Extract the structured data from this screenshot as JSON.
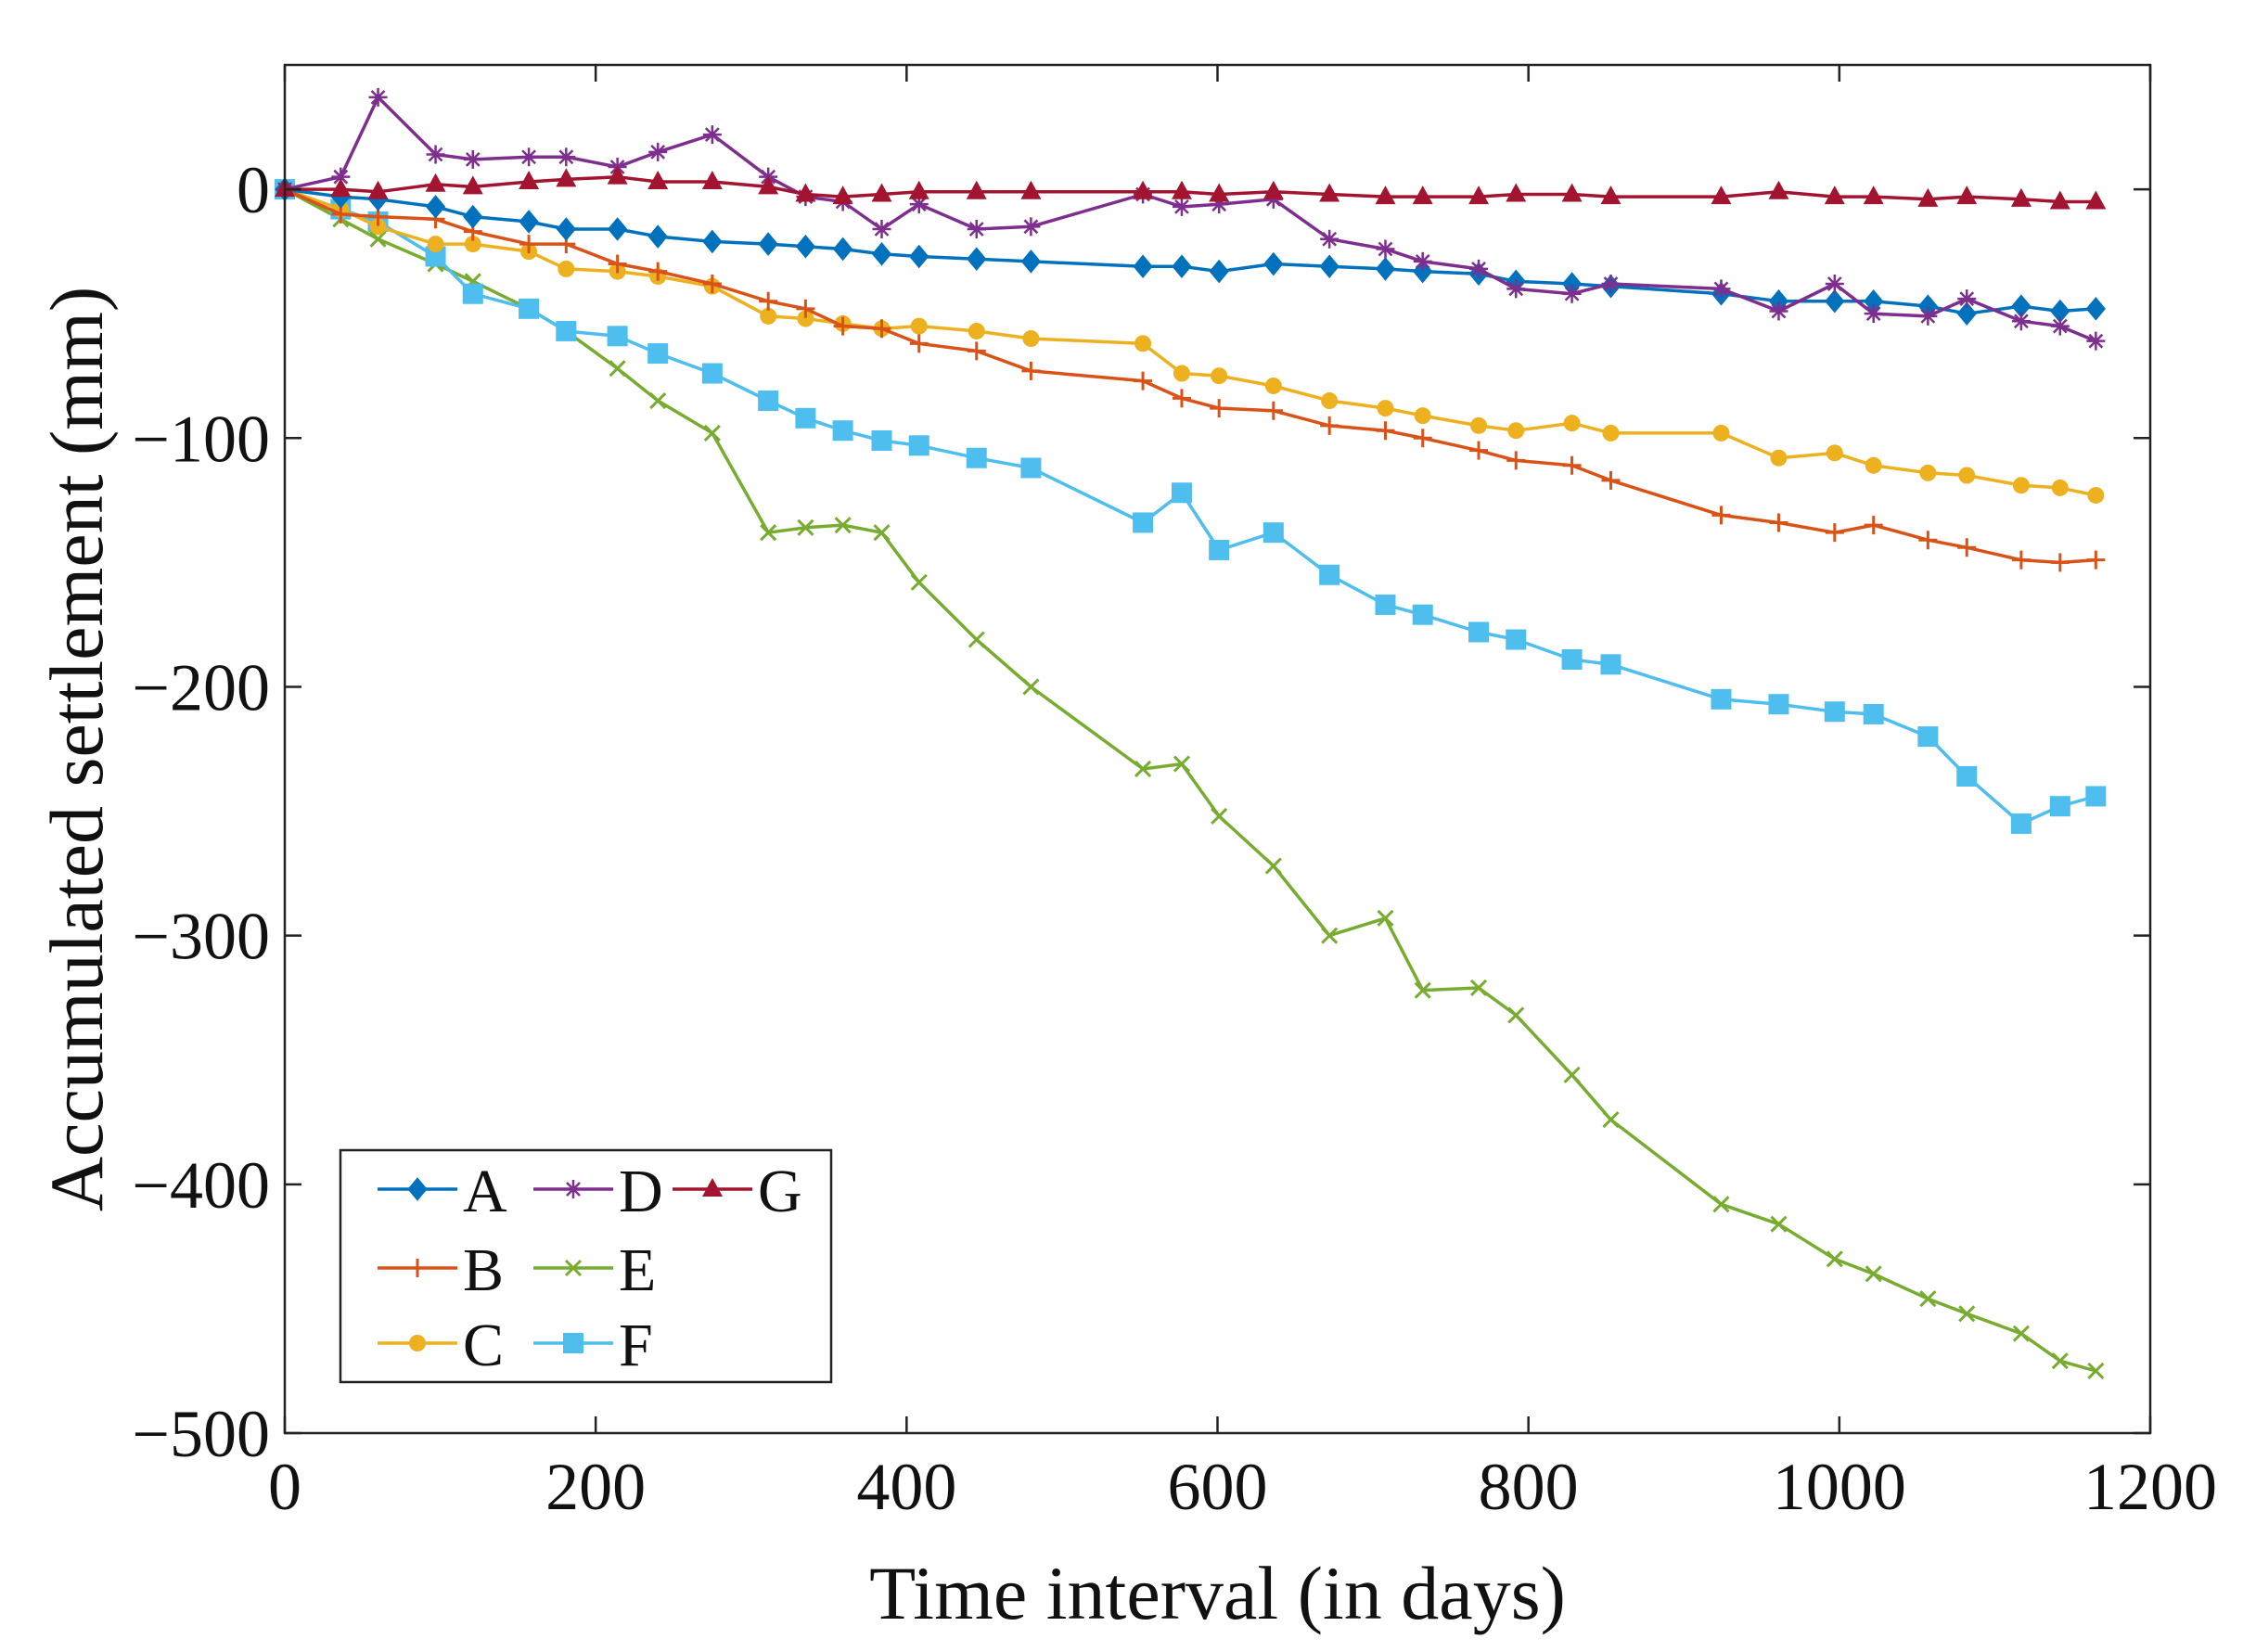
{
  "chart_data": {
    "type": "line",
    "title": "",
    "xlabel": "Time interval (in days)",
    "ylabel": "Accumulated settlement (mm)",
    "xlim": [
      0,
      1200
    ],
    "ylim": [
      -500,
      50
    ],
    "xticks": [
      0,
      200,
      400,
      600,
      800,
      1000,
      1200
    ],
    "yticks": [
      0,
      -100,
      -200,
      -300,
      -400,
      -500
    ],
    "xtick_labels": [
      "0",
      "200",
      "400",
      "600",
      "800",
      "1000",
      "1200"
    ],
    "ytick_labels": [
      "0",
      "−100",
      "−200",
      "−300",
      "−400",
      "−500"
    ],
    "grid": false,
    "legend_position": "bottom-left",
    "series": [
      {
        "name": "A",
        "color": "#0072BD",
        "marker": "diamond",
        "x": [
          0,
          36,
          60,
          97,
          121,
          157,
          181,
          214,
          240,
          275,
          311,
          335,
          359,
          384,
          408,
          445,
          480,
          552,
          577,
          601,
          636,
          672,
          708,
          732,
          768,
          792,
          828,
          853,
          924,
          961,
          997,
          1022,
          1057,
          1082,
          1117,
          1142,
          1165
        ],
        "y": [
          0,
          -3,
          -4,
          -7,
          -11,
          -13,
          -16,
          -16,
          -19,
          -21,
          -22,
          -23,
          -24,
          -26,
          -27,
          -28,
          -29,
          -31,
          -31,
          -33,
          -30,
          -31,
          -32,
          -33,
          -34,
          -37,
          -38,
          -39,
          -42,
          -45,
          -45,
          -45,
          -47,
          -50,
          -47,
          -49,
          -48
        ]
      },
      {
        "name": "B",
        "color": "#D95319",
        "marker": "plus",
        "x": [
          0,
          36,
          60,
          97,
          121,
          157,
          181,
          214,
          240,
          275,
          311,
          335,
          359,
          384,
          408,
          445,
          480,
          552,
          577,
          601,
          636,
          672,
          708,
          732,
          768,
          792,
          828,
          853,
          924,
          961,
          997,
          1022,
          1057,
          1082,
          1117,
          1142,
          1165
        ],
        "y": [
          0,
          -10,
          -11,
          -12,
          -17,
          -22,
          -22,
          -30,
          -33,
          -38,
          -45,
          -48,
          -55,
          -56,
          -62,
          -65,
          -73,
          -77,
          -84,
          -88,
          -89,
          -95,
          -97,
          -100,
          -105,
          -109,
          -111,
          -117,
          -131,
          -134,
          -138,
          -135,
          -141,
          -144,
          -149,
          -150,
          -149
        ]
      },
      {
        "name": "C",
        "color": "#EDB120",
        "marker": "circle",
        "x": [
          0,
          36,
          60,
          97,
          121,
          157,
          181,
          214,
          240,
          275,
          311,
          335,
          359,
          384,
          408,
          445,
          480,
          552,
          577,
          601,
          636,
          672,
          708,
          732,
          768,
          792,
          828,
          853,
          924,
          961,
          997,
          1022,
          1057,
          1082,
          1117,
          1142,
          1165
        ],
        "y": [
          0,
          -8,
          -15,
          -22,
          -22,
          -25,
          -32,
          -33,
          -35,
          -39,
          -51,
          -52,
          -54,
          -56,
          -55,
          -57,
          -60,
          -62,
          -74,
          -75,
          -79,
          -85,
          -88,
          -91,
          -95,
          -97,
          -94,
          -98,
          -98,
          -108,
          -106,
          -111,
          -114,
          -115,
          -119,
          -120,
          -123
        ]
      },
      {
        "name": "D",
        "color": "#7E2F8E",
        "marker": "asterisk",
        "x": [
          0,
          36,
          60,
          97,
          121,
          157,
          181,
          214,
          240,
          275,
          311,
          335,
          359,
          384,
          408,
          445,
          480,
          552,
          577,
          601,
          636,
          672,
          708,
          732,
          768,
          792,
          828,
          853,
          924,
          961,
          997,
          1022,
          1057,
          1082,
          1117,
          1142,
          1165
        ],
        "y": [
          0,
          5,
          37,
          14,
          12,
          13,
          13,
          9,
          15,
          22,
          5,
          -3,
          -5,
          -16,
          -6,
          -16,
          -15,
          -2,
          -7,
          -6,
          -4,
          -20,
          -24,
          -29,
          -32,
          -40,
          -42,
          -38,
          -40,
          -49,
          -38,
          -50,
          -51,
          -44,
          -53,
          -55,
          -61
        ]
      },
      {
        "name": "E",
        "color": "#77AC30",
        "marker": "cross",
        "x": [
          0,
          36,
          60,
          97,
          121,
          157,
          181,
          214,
          240,
          275,
          311,
          335,
          359,
          384,
          408,
          445,
          480,
          552,
          577,
          601,
          636,
          672,
          708,
          732,
          768,
          792,
          828,
          853,
          924,
          961,
          997,
          1022,
          1057,
          1082,
          1117,
          1142,
          1165
        ],
        "y": [
          0,
          -12,
          -20,
          -30,
          -37,
          -48,
          -57,
          -72,
          -85,
          -98,
          -138,
          -136,
          -135,
          -138,
          -158,
          -181,
          -200,
          -233,
          -231,
          -252,
          -272,
          -300,
          -293,
          -322,
          -321,
          -332,
          -356,
          -374,
          -408,
          -416,
          -430,
          -436,
          -446,
          -452,
          -460,
          -471,
          -475
        ]
      },
      {
        "name": "F",
        "color": "#4DBEEE",
        "marker": "square",
        "x": [
          0,
          36,
          60,
          97,
          121,
          157,
          181,
          214,
          240,
          275,
          311,
          335,
          359,
          384,
          408,
          445,
          480,
          552,
          577,
          601,
          636,
          672,
          708,
          732,
          768,
          792,
          828,
          853,
          924,
          961,
          997,
          1022,
          1057,
          1082,
          1117,
          1142,
          1165
        ],
        "y": [
          0,
          -8,
          -13,
          -27,
          -42,
          -48,
          -57,
          -59,
          -66,
          -74,
          -85,
          -92,
          -97,
          -101,
          -103,
          -108,
          -112,
          -134,
          -122,
          -145,
          -138,
          -155,
          -167,
          -171,
          -178,
          -181,
          -189,
          -191,
          -205,
          -207,
          -210,
          -211,
          -220,
          -236,
          -255,
          -248,
          -244
        ]
      },
      {
        "name": "G",
        "color": "#A2142F",
        "marker": "triangle",
        "x": [
          0,
          36,
          60,
          97,
          121,
          157,
          181,
          214,
          240,
          275,
          311,
          335,
          359,
          384,
          408,
          445,
          480,
          552,
          577,
          601,
          636,
          672,
          708,
          732,
          768,
          792,
          828,
          853,
          924,
          961,
          997,
          1022,
          1057,
          1082,
          1117,
          1142,
          1165
        ],
        "y": [
          0,
          0,
          -1,
          2,
          1,
          3,
          4,
          5,
          3,
          3,
          1,
          -2,
          -3,
          -2,
          -1,
          -1,
          -1,
          -1,
          -1,
          -2,
          -1,
          -2,
          -3,
          -3,
          -3,
          -2,
          -2,
          -3,
          -3,
          -1,
          -3,
          -3,
          -4,
          -3,
          -4,
          -5,
          -5
        ]
      }
    ]
  }
}
